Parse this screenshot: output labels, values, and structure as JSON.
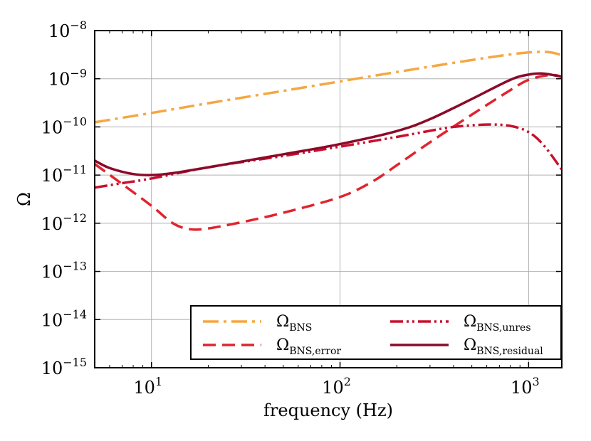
{
  "chart_data": {
    "type": "line",
    "title": "",
    "xlabel": "frequency (Hz)",
    "ylabel": "Ω",
    "xscale": "log",
    "yscale": "log",
    "xlim": [
      5,
      1500
    ],
    "ylim": [
      1e-15,
      1e-08
    ],
    "grid": true,
    "legend_position": "lower-right",
    "x_ticks": [
      {
        "value": 10,
        "base": "10",
        "exp": "1"
      },
      {
        "value": 100,
        "base": "10",
        "exp": "2"
      },
      {
        "value": 1000,
        "base": "10",
        "exp": "3"
      }
    ],
    "y_ticks": [
      {
        "value": 1e-15,
        "base": "10",
        "exp": "−15"
      },
      {
        "value": 1e-14,
        "base": "10",
        "exp": "−14"
      },
      {
        "value": 1e-13,
        "base": "10",
        "exp": "−13"
      },
      {
        "value": 1e-12,
        "base": "10",
        "exp": "−12"
      },
      {
        "value": 1e-11,
        "base": "10",
        "exp": "−11"
      },
      {
        "value": 1e-10,
        "base": "10",
        "exp": "−10"
      },
      {
        "value": 1e-09,
        "base": "10",
        "exp": "−9"
      },
      {
        "value": 1e-08,
        "base": "10",
        "exp": "−8"
      }
    ],
    "series": [
      {
        "name": "Ω",
        "sub": "BNS",
        "color": "#f5a742",
        "dash": "22,7,4,7",
        "x": [
          5,
          10,
          20,
          50,
          100,
          200,
          500,
          800,
          1100,
          1300,
          1500
        ],
        "y": [
          1.25e-10,
          1.95e-10,
          3.1e-10,
          5.6e-10,
          8.8e-10,
          1.38e-09,
          2.45e-09,
          3.2e-09,
          3.6e-09,
          3.55e-09,
          3.1e-09
        ]
      },
      {
        "name": "Ω",
        "sub": "BNS,error",
        "color": "#e0242e",
        "dash": "18,9",
        "x": [
          5,
          7,
          10,
          13,
          16,
          20,
          30,
          50,
          100,
          150,
          200,
          300,
          500,
          800,
          1000,
          1300,
          1500
        ],
        "y": [
          1.7e-11,
          6.5e-12,
          2.3e-12,
          1e-12,
          7.5e-13,
          7.8e-13,
          1.05e-12,
          1.65e-12,
          3.5e-12,
          7.5e-12,
          1.6e-11,
          4.8e-11,
          1.8e-10,
          5.8e-10,
          9.5e-10,
          1.2e-09,
          1.1e-09
        ]
      },
      {
        "name": "Ω",
        "sub": "BNS,unres",
        "color": "#c8102e",
        "dash": "18,5,3,5,3,5",
        "x": [
          5,
          7,
          10,
          20,
          50,
          100,
          200,
          300,
          400,
          600,
          800,
          1000,
          1200,
          1500
        ],
        "y": [
          5.5e-12,
          6.8e-12,
          8.5e-12,
          1.45e-11,
          2.5e-11,
          3.9e-11,
          6.2e-11,
          8.3e-11,
          1e-10,
          1.12e-10,
          1.05e-10,
          7.8e-11,
          4.2e-11,
          1.3e-11
        ]
      },
      {
        "name": "Ω",
        "sub": "BNS,residual",
        "color": "#8b0a2a",
        "dash": "",
        "x": [
          5,
          6,
          8,
          10,
          13,
          20,
          50,
          100,
          200,
          300,
          500,
          800,
          1000,
          1200,
          1500
        ],
        "y": [
          2e-11,
          1.4e-11,
          1.05e-11,
          1e-11,
          1.1e-11,
          1.45e-11,
          2.7e-11,
          4.4e-11,
          8.2e-11,
          1.45e-10,
          3.8e-10,
          9.5e-10,
          1.22e-09,
          1.28e-09,
          1.1e-09
        ]
      }
    ]
  }
}
